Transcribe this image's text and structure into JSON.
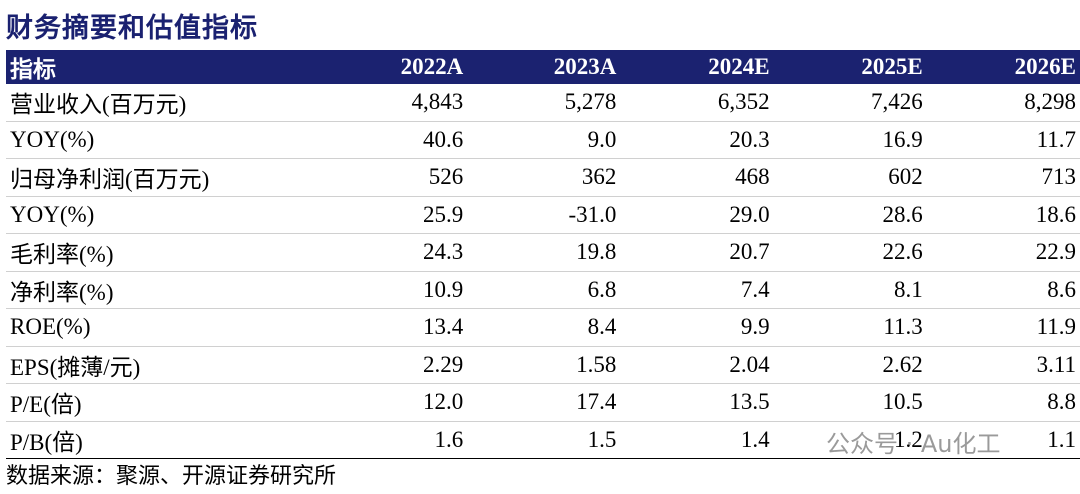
{
  "title": "财务摘要和估值指标",
  "table": {
    "header": [
      "指标",
      "2022A",
      "2023A",
      "2024E",
      "2025E",
      "2026E"
    ],
    "rows": [
      [
        "营业收入(百万元)",
        "4,843",
        "5,278",
        "6,352",
        "7,426",
        "8,298"
      ],
      [
        "YOY(%)",
        "40.6",
        "9.0",
        "20.3",
        "16.9",
        "11.7"
      ],
      [
        "归母净利润(百万元)",
        "526",
        "362",
        "468",
        "602",
        "713"
      ],
      [
        "YOY(%)",
        "25.9",
        "-31.0",
        "29.0",
        "28.6",
        "18.6"
      ],
      [
        "毛利率(%)",
        "24.3",
        "19.8",
        "20.7",
        "22.6",
        "22.9"
      ],
      [
        "净利率(%)",
        "10.9",
        "6.8",
        "7.4",
        "8.1",
        "8.6"
      ],
      [
        "ROE(%)",
        "13.4",
        "8.4",
        "9.9",
        "11.3",
        "11.9"
      ],
      [
        "EPS(摊薄/元)",
        "2.29",
        "1.58",
        "2.04",
        "2.62",
        "3.11"
      ],
      [
        "P/E(倍)",
        "12.0",
        "17.4",
        "13.5",
        "10.5",
        "8.8"
      ],
      [
        "P/B(倍)",
        "1.6",
        "1.5",
        "1.4",
        "1.2",
        "1.1"
      ]
    ]
  },
  "source": "数据来源：聚源、开源证券研究所",
  "watermark": "公众号 · Au化工"
}
